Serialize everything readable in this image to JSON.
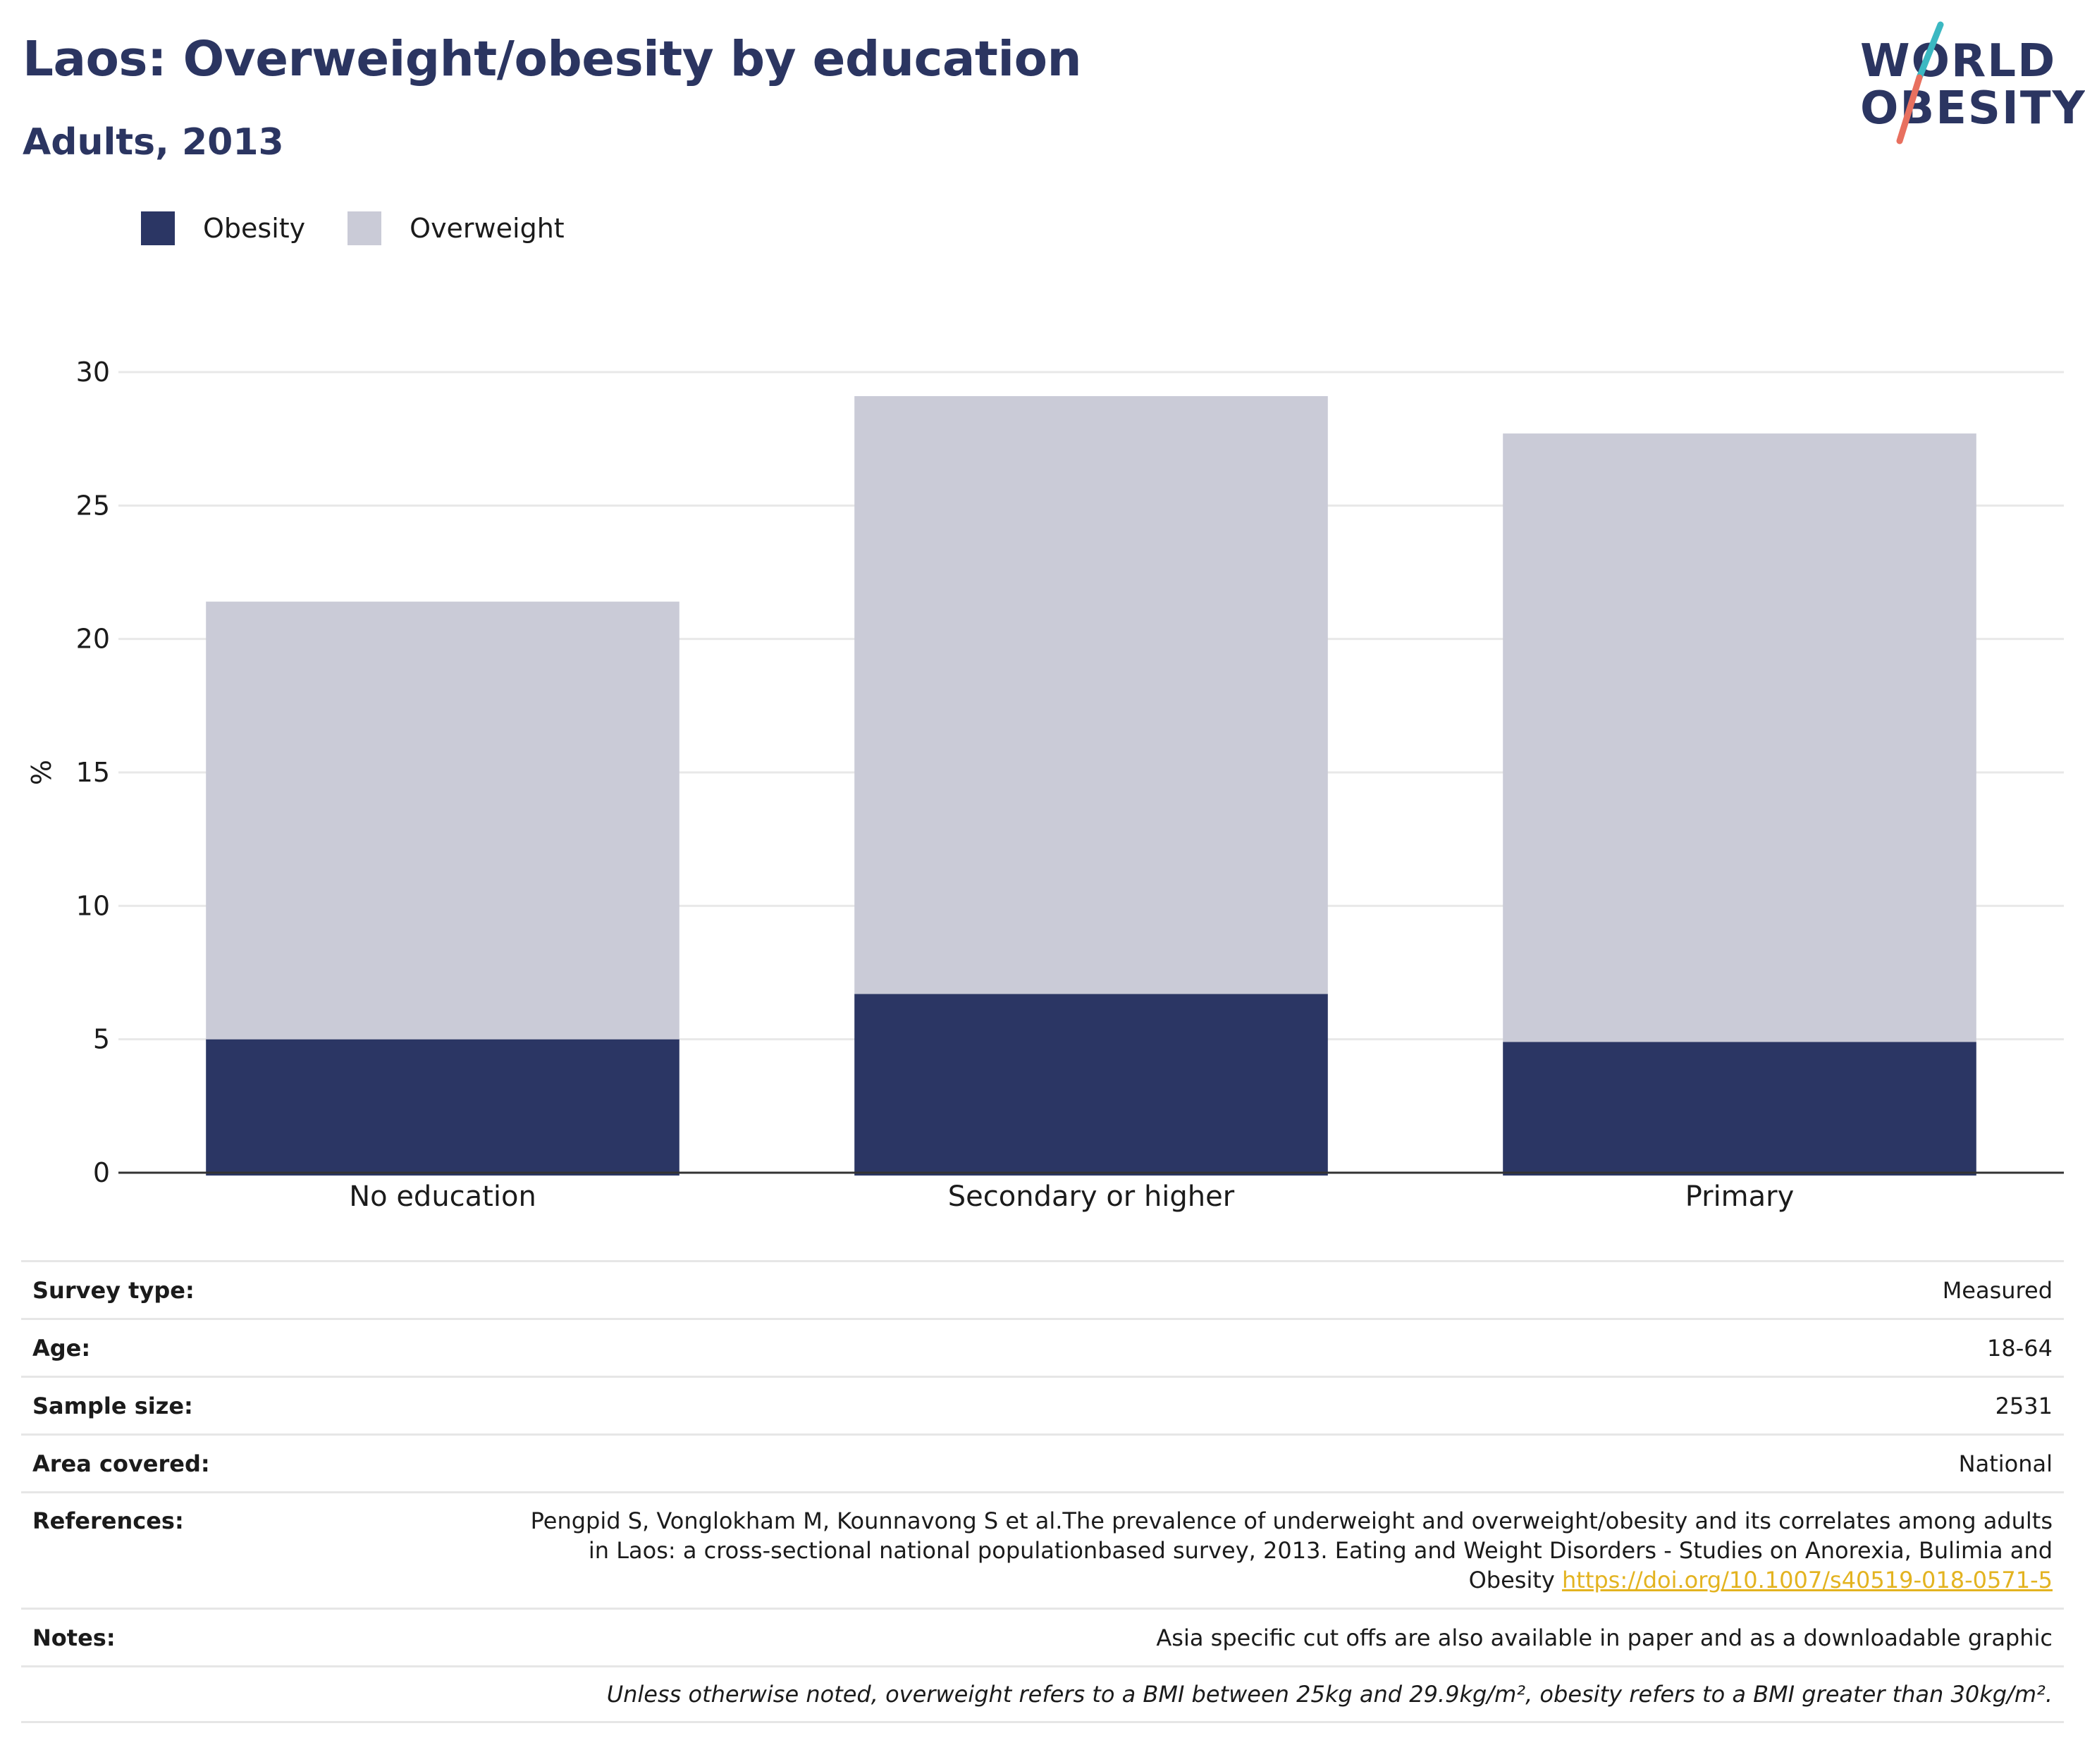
{
  "header": {
    "title": "Laos: Overweight/obesity by education",
    "subtitle": "Adults, 2013"
  },
  "logo": {
    "line1": "WORLD",
    "line2": "OBESITY"
  },
  "colors": {
    "obesity": "#2b3664",
    "overweight": "#cacbd7",
    "title": "#2b3561",
    "link": "#e3b320"
  },
  "chart_data": {
    "type": "bar",
    "stacked": true,
    "categories": [
      "No education",
      "Secondary or higher",
      "Primary"
    ],
    "series": [
      {
        "name": "Obesity",
        "values": [
          5.0,
          6.7,
          4.9
        ]
      },
      {
        "name": "Overweight",
        "values": [
          16.4,
          22.4,
          22.8
        ]
      }
    ],
    "ylabel": "%",
    "xlabel": "",
    "ylim": [
      0,
      30
    ],
    "yticks": [
      0,
      5,
      10,
      15,
      20,
      25,
      30
    ],
    "grid": true,
    "legend": "top-left"
  },
  "legend": {
    "items": [
      "Obesity",
      "Overweight"
    ]
  },
  "table": {
    "survey_type": {
      "label": "Survey type:",
      "value": "Measured"
    },
    "age": {
      "label": "Age:",
      "value": "18-64"
    },
    "sample_size": {
      "label": "Sample size:",
      "value": "2531"
    },
    "area": {
      "label": "Area covered:",
      "value": "National"
    },
    "references": {
      "label": "References:",
      "text": "Pengpid S, Vonglokham M, Kounnavong S et al.The prevalence of underweight and overweight/obesity and its correlates among adults in Laos: a cross-sectional national populationbased survey, 2013. Eating and Weight Disorders - Studies on Anorexia, Bulimia and Obesity",
      "link": "https://doi.org/10.1007/s40519-018-0571-5"
    },
    "notes": {
      "label": "Notes:",
      "value": "Asia specific cut offs are also available in paper and as a downloadable graphic"
    },
    "footnote": "Unless otherwise noted, overweight refers to a BMI between 25kg and 29.9kg/m², obesity refers to a BMI greater than 30kg/m²."
  }
}
